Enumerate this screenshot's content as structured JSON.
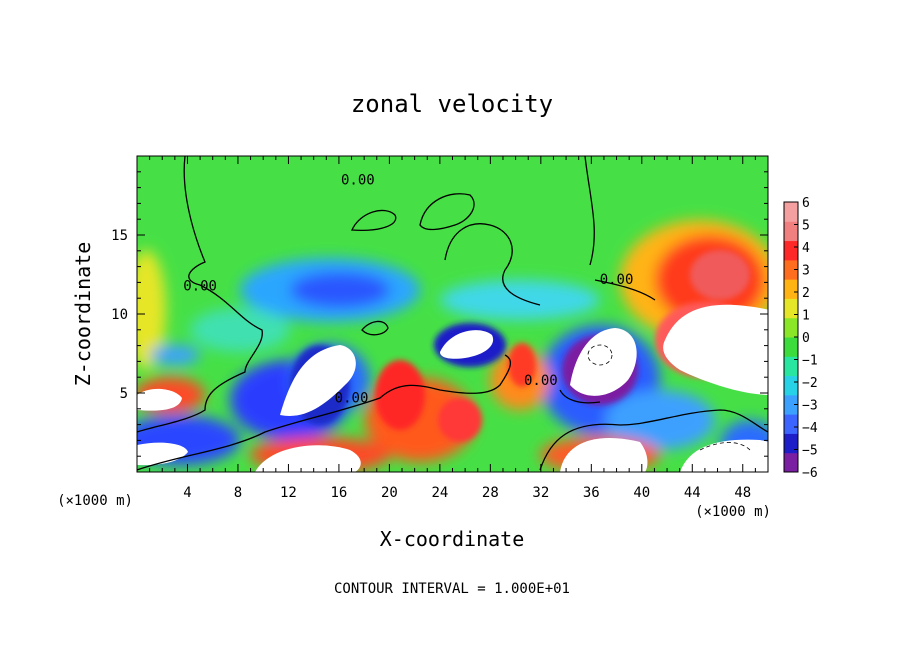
{
  "chart_data": {
    "type": "heatmap",
    "title": "zonal velocity",
    "xlabel": "X-coordinate",
    "ylabel": "Z-coordinate",
    "x_unit_left": "(×1000 m)",
    "x_unit_right": "(×1000 m)",
    "xlim": [
      0,
      50
    ],
    "ylim": [
      0,
      20
    ],
    "x_ticks": [
      4,
      8,
      12,
      16,
      20,
      24,
      28,
      32,
      36,
      40,
      44,
      48
    ],
    "y_ticks": [
      5,
      10,
      15
    ],
    "x_tick_labels": [
      "4",
      "8",
      "12",
      "16",
      "20",
      "24",
      "28",
      "32",
      "36",
      "40",
      "44",
      "48"
    ],
    "y_tick_labels": [
      "5",
      "10",
      "15"
    ],
    "colorbar": {
      "min": -6,
      "max": 6,
      "tick_labels": [
        "6",
        "5",
        "4",
        "3",
        "2",
        "1",
        "0",
        "−1",
        "−2",
        "−3",
        "−4",
        "−5",
        "−6"
      ],
      "colors": [
        "#7b1fa2",
        "#1e1ec8",
        "#3c64ff",
        "#3ca0ff",
        "#28d2e6",
        "#28e6a0",
        "#3cdc3c",
        "#8ce628",
        "#e6e628",
        "#ffb414",
        "#ff6e1e",
        "#ff2828",
        "#f08080",
        "#f4a0a0"
      ]
    },
    "contour_labels": [
      {
        "text": "0.00",
        "x": 17.5,
        "y": 18.2
      },
      {
        "text": "0.00",
        "x": 5.0,
        "y": 11.5
      },
      {
        "text": "0.00",
        "x": 38.0,
        "y": 11.9
      },
      {
        "text": "0.00",
        "x": 17.0,
        "y": 4.4
      },
      {
        "text": "0.00",
        "x": 32.0,
        "y": 5.5
      }
    ],
    "note": "CONTOUR INTERVAL = 1.000E+01"
  }
}
